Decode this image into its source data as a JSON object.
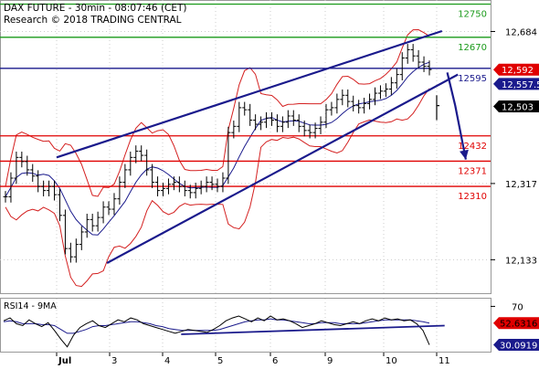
{
  "header": {
    "line1": "DAX FUTURE - 30min - 08:07:46 (CET)",
    "line2": "Research © 2018 TRADING CENTRAL"
  },
  "colors": {
    "green": "#1a9a1a",
    "red": "#e00000",
    "navy": "#1a1a8c",
    "price": "#000000",
    "grid": "#cccccc",
    "bollinger": "#d42020",
    "ma": "#1a1a8c",
    "rsi": "#000000",
    "rsi_ma": "#1a1a8c"
  },
  "chart_data": [
    {
      "type": "candlestick",
      "y_axis": {
        "range": [
          12050,
          12760
        ],
        "ticks": [
          12684,
          12317,
          12133
        ]
      },
      "x_axis": {
        "tick_labels": [
          "Jul",
          "3",
          "4",
          "5",
          "6",
          "9",
          "10",
          "11"
        ]
      },
      "levels": [
        {
          "label": "12750",
          "value": 12750,
          "color": "green"
        },
        {
          "label": "12670",
          "value": 12670,
          "color": "green"
        },
        {
          "label": "12595",
          "value": 12595,
          "color": "navy"
        },
        {
          "label": "12432",
          "value": 12432,
          "color": "red"
        },
        {
          "label": "12371",
          "value": 12371,
          "color": "red"
        },
        {
          "label": "12310",
          "value": 12310,
          "color": "red"
        }
      ],
      "price_tags": [
        {
          "label": "12,592",
          "value": 12592,
          "background": "#e00000",
          "text_color": "#ffffff"
        },
        {
          "label": "12,557.5",
          "value": 12557.5,
          "background": "#1a1a8c",
          "text_color": "#ffffff"
        },
        {
          "label": "12,503",
          "value": 12503,
          "background": "#000000",
          "text_color": "#ffffff"
        }
      ],
      "trendlines": [
        {
          "name": "upper channel",
          "from": [
            0.0,
            12380
          ],
          "to": [
            7.1,
            12685
          ],
          "color": "navy"
        },
        {
          "name": "lower channel",
          "from": [
            0.95,
            12125
          ],
          "to": [
            7.4,
            12580
          ],
          "color": "navy"
        }
      ],
      "forecast_arrow": [
        [
          7.2,
          12585
        ],
        [
          7.35,
          12505
        ],
        [
          7.55,
          12375
        ]
      ],
      "price_series": [
        12285,
        12330,
        12380,
        12370,
        12350,
        12335,
        12310,
        12300,
        12310,
        12290,
        12240,
        12160,
        12140,
        12170,
        12200,
        12230,
        12215,
        12235,
        12260,
        12255,
        12280,
        12320,
        12350,
        12380,
        12395,
        12385,
        12350,
        12320,
        12300,
        12305,
        12315,
        12320,
        12310,
        12300,
        12295,
        12305,
        12310,
        12320,
        12315,
        12310,
        12330,
        12440,
        12455,
        12500,
        12495,
        12470,
        12460,
        12465,
        12475,
        12470,
        12455,
        12465,
        12480,
        12470,
        12455,
        12445,
        12440,
        12450,
        12465,
        12495,
        12500,
        12520,
        12530,
        12515,
        12505,
        12500,
        12510,
        12520,
        12535,
        12540,
        12545,
        12560,
        12580,
        12620,
        12640,
        12625,
        12610,
        12600,
        12592
      ],
      "gap_bar": [
        7.0,
        12505,
        12530,
        12470,
        12480
      ]
    },
    {
      "type": "line",
      "title": "RSI14 - 9MA",
      "y_axis": {
        "range": [
          22,
          78
        ],
        "ticks": [
          70
        ]
      },
      "tags": [
        {
          "label": "52.6316",
          "value": 52.6316,
          "background": "#e00000",
          "text_color": "#000000"
        },
        {
          "label": "30.0919",
          "value": 30.0919,
          "background": "#1a1a8c",
          "text_color": "#ffffff"
        }
      ],
      "support_line": {
        "from": [
          2.35,
          41
        ],
        "to": [
          7.15,
          50
        ]
      },
      "rsi": [
        55,
        58,
        52,
        50,
        56,
        52,
        49,
        53,
        45,
        36,
        28,
        40,
        48,
        52,
        55,
        50,
        48,
        52,
        56,
        54,
        58,
        56,
        52,
        50,
        48,
        46,
        44,
        42,
        44,
        46,
        45,
        44,
        43,
        46,
        50,
        55,
        58,
        60,
        57,
        54,
        58,
        55,
        60,
        56,
        57,
        55,
        52,
        48,
        50,
        52,
        55,
        53,
        51,
        50,
        52,
        54,
        52,
        55,
        57,
        55,
        58,
        56,
        57,
        55,
        56,
        52,
        45,
        30
      ],
      "rsi_ma": [
        54,
        55,
        54,
        52,
        52,
        52,
        51,
        51,
        50,
        46,
        42,
        42,
        44,
        46,
        49,
        50,
        50,
        51,
        52,
        53,
        54,
        54,
        53,
        52,
        50,
        49,
        47,
        46,
        45,
        45,
        45,
        45,
        45,
        45,
        46,
        48,
        50,
        52,
        54,
        55,
        56,
        56,
        57,
        56,
        56,
        55,
        54,
        53,
        52,
        52,
        53,
        53,
        53,
        52,
        52,
        52,
        52,
        53,
        54,
        55,
        56,
        56,
        56,
        56,
        56,
        55,
        54,
        52.63
      ]
    }
  ]
}
